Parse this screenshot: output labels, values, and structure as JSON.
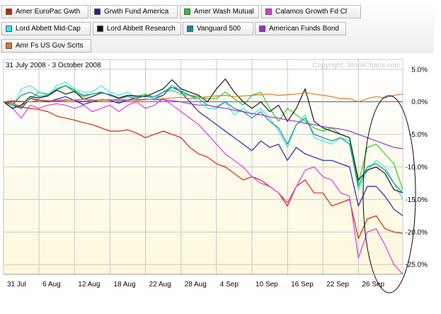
{
  "chart_data": {
    "type": "line",
    "date_range": "31 July 2008 - 3 October 2008",
    "copyright": "Copyright, StockCharts.com",
    "x_tick_labels": [
      "31 Jul",
      "6 Aug",
      "12 Aug",
      "18 Aug",
      "22 Aug",
      "28 Aug",
      "4 Sep",
      "10 Sep",
      "16 Sep",
      "22 Sep",
      "26 Sep"
    ],
    "x_tick_index": [
      0,
      4,
      8,
      12,
      16,
      20,
      24,
      28,
      32,
      36,
      40
    ],
    "y_tick_labels": [
      "5.0%",
      "0.0%",
      "-5.0%",
      "-10.0%",
      "-15.0%",
      "-20.0%",
      "-25.0%"
    ],
    "y_ticks": [
      5,
      0,
      -5,
      -10,
      -15,
      -20,
      -25
    ],
    "ylim": [
      -26.5,
      6.5
    ],
    "n_points": 46,
    "grid": true,
    "background_gradient": [
      "#ffffff",
      "#fdf8dc"
    ],
    "series": [
      {
        "name": "Amer EuroPac Gwth",
        "color": "#cc2200",
        "values": [
          0,
          -0.2,
          -0.8,
          -1.0,
          -1.2,
          -1.5,
          -2.2,
          -2.5,
          -2.8,
          -3.2,
          -3.5,
          -4.0,
          -4.5,
          -4.5,
          -4.3,
          -4.8,
          -5.5,
          -5.0,
          -4.5,
          -5.0,
          -5.5,
          -7.0,
          -8.0,
          -8.5,
          -9.5,
          -10.0,
          -11.0,
          -12.0,
          -11.5,
          -12.0,
          -13.0,
          -14.0,
          -16.0,
          -13.0,
          -12.0,
          -14.0,
          -14.0,
          -16.0,
          -15.5,
          -15.0,
          -21.0,
          -18.0,
          -17.5,
          -19.5,
          -20.0,
          -20.2
        ]
      },
      {
        "name": "Grwth Fund America",
        "color": "#2a1aa8",
        "values": [
          0,
          -0.5,
          -1.0,
          0.5,
          0.3,
          0.0,
          0.4,
          0.8,
          0.2,
          -0.4,
          0.0,
          0.3,
          0.2,
          -0.2,
          0.3,
          0.6,
          0.9,
          0.5,
          1.0,
          2.5,
          1.5,
          0.0,
          -1.5,
          -2.5,
          -3.5,
          -4.5,
          -5.5,
          -6.5,
          -7.5,
          -6.0,
          -7.0,
          -6.5,
          -9.0,
          -7.0,
          -8.0,
          -8.5,
          -9.0,
          -9.0,
          -9.5,
          -10.0,
          -16.0,
          -13.0,
          -13.0,
          -14.5,
          -16.5,
          -17.5
        ]
      },
      {
        "name": "Amer Wash Mutual",
        "color": "#22cc22",
        "values": [
          0,
          -0.5,
          -0.6,
          0.4,
          1.5,
          1.2,
          1.8,
          2.5,
          1.5,
          0.8,
          1.2,
          1.5,
          1.0,
          0.5,
          1.0,
          0.8,
          1.2,
          0.5,
          1.5,
          1.8,
          1.2,
          1.0,
          0.8,
          0.5,
          0.5,
          1.5,
          0.5,
          -0.5,
          1.0,
          1.5,
          -1.0,
          -3.0,
          -1.0,
          -2.0,
          -3.0,
          -4.0,
          -4.5,
          -4.0,
          -5.0,
          -5.5,
          -12.5,
          -7.0,
          -6.5,
          -8.0,
          -9.5,
          -13.5
        ]
      },
      {
        "name": "Calamos Growth Fd Cl",
        "color": "#dd33dd",
        "values": [
          0,
          -1.0,
          -2.5,
          -0.5,
          -1.0,
          -0.5,
          -0.3,
          -0.5,
          -1.0,
          -0.5,
          -1.5,
          -1.0,
          -0.5,
          -1.5,
          -0.5,
          0.0,
          -1.0,
          -0.5,
          0.5,
          -0.5,
          -1.5,
          -2.5,
          -3.5,
          -5.0,
          -6.5,
          -8.0,
          -9.0,
          -10.0,
          -11.5,
          -12.5,
          -13.0,
          -14.0,
          -15.5,
          -13.0,
          -10.5,
          -10.0,
          -11.5,
          -12.0,
          -14.0,
          -14.5,
          -24.0,
          -20.0,
          -19.5,
          -22.0,
          -25.0,
          -26.5
        ]
      },
      {
        "name": "Lord Abbett Mid-Cap",
        "color": "#33e6e6",
        "values": [
          0,
          -1.0,
          2.0,
          2.5,
          1.5,
          1.0,
          2.5,
          3.0,
          2.0,
          1.5,
          1.5,
          2.5,
          1.5,
          1.0,
          1.5,
          0.5,
          1.0,
          0.5,
          1.5,
          2.5,
          1.8,
          1.0,
          0.0,
          -1.0,
          -1.0,
          0.0,
          -2.0,
          -1.0,
          -2.0,
          -1.0,
          -2.5,
          -4.5,
          -7.0,
          -3.5,
          -2.0,
          -5.5,
          -6.0,
          -6.5,
          -5.5,
          -6.0,
          -13.5,
          -10.5,
          -9.0,
          -10.0,
          -12.5,
          -15.0
        ]
      },
      {
        "name": "Lord Abbett Research",
        "color": "#111111",
        "values": [
          0,
          -1.0,
          -0.5,
          0.8,
          0.6,
          0.9,
          1.8,
          1.2,
          1.6,
          0.4,
          0.8,
          1.4,
          1.1,
          0.6,
          1.0,
          0.9,
          0.8,
          1.4,
          2.0,
          3.4,
          2.0,
          1.5,
          1.0,
          0.0,
          2.0,
          3.5,
          1.5,
          0.0,
          -1.0,
          0.0,
          -1.5,
          -0.5,
          -3.0,
          -1.0,
          2.0,
          -3.0,
          -4.0,
          -4.5,
          -5.0,
          -5.5,
          -12.0,
          -10.5,
          -10.0,
          -11.0,
          -13.5,
          -14.0
        ]
      },
      {
        "name": "Vanguard 500",
        "color": "#1a8a8a",
        "values": [
          0,
          -0.5,
          1.0,
          1.5,
          0.8,
          1.0,
          2.0,
          2.5,
          1.8,
          1.0,
          1.2,
          1.5,
          1.0,
          0.5,
          0.8,
          0.5,
          1.0,
          0.8,
          1.5,
          2.2,
          1.6,
          1.0,
          0.5,
          -0.5,
          -0.8,
          0.0,
          -1.0,
          -1.5,
          -2.5,
          -1.5,
          -3.0,
          -4.0,
          -6.5,
          -3.5,
          -2.5,
          -5.0,
          -5.5,
          -6.0,
          -5.5,
          -6.5,
          -13.0,
          -10.0,
          -9.5,
          -10.5,
          -12.5,
          -14.0
        ]
      },
      {
        "name": "American Funds Bond",
        "color": "#9933cc",
        "values": [
          0,
          0.1,
          0.1,
          0.0,
          0.2,
          0.1,
          0.2,
          0.3,
          0.2,
          0.1,
          0.2,
          0.3,
          0.3,
          0.2,
          0.2,
          0.3,
          0.4,
          0.3,
          0.3,
          0.2,
          0.0,
          -0.3,
          -0.5,
          -0.5,
          -0.8,
          -1.0,
          -1.3,
          -1.5,
          -1.8,
          -2.0,
          -2.3,
          -2.5,
          -2.8,
          -3.0,
          -3.3,
          -3.5,
          -3.8,
          -4.0,
          -4.2,
          -4.5,
          -5.0,
          -5.5,
          -6.0,
          -6.5,
          -7.0,
          -7.2
        ]
      },
      {
        "name": "Amr Fs US Gov Scrts",
        "color": "#dd7722",
        "values": [
          0,
          0.2,
          0.1,
          0.0,
          0.3,
          0.2,
          0.1,
          0.2,
          0.3,
          0.4,
          0.3,
          0.2,
          0.3,
          0.4,
          0.3,
          0.2,
          0.3,
          0.4,
          0.5,
          0.6,
          0.7,
          0.5,
          0.6,
          0.8,
          0.9,
          1.0,
          0.8,
          0.9,
          1.0,
          1.1,
          1.2,
          1.0,
          1.1,
          1.2,
          1.4,
          1.2,
          1.0,
          0.8,
          0.5,
          0.5,
          0.0,
          0.5,
          0.8,
          0.6,
          1.0,
          1.2
        ]
      }
    ]
  },
  "legend": {
    "items": [
      {
        "label": "Amer EuroPac Gwth",
        "color": "#cc2200"
      },
      {
        "label": "Grwth Fund America",
        "color": "#2a1aa8"
      },
      {
        "label": "Amer Wash Mutual",
        "color": "#22cc22"
      },
      {
        "label": "Calamos Growth Fd Cl",
        "color": "#dd33dd"
      },
      {
        "label": "Lord Abbett Mid-Cap",
        "color": "#33e6e6"
      },
      {
        "label": "Lord Abbett Research",
        "color": "#111111"
      },
      {
        "label": "Vanguard 500",
        "color": "#1a8a8a"
      },
      {
        "label": "American Funds Bond",
        "color": "#9933cc"
      },
      {
        "label": "Amr Fs US Gov Scrts",
        "color": "#dd7722"
      }
    ]
  }
}
